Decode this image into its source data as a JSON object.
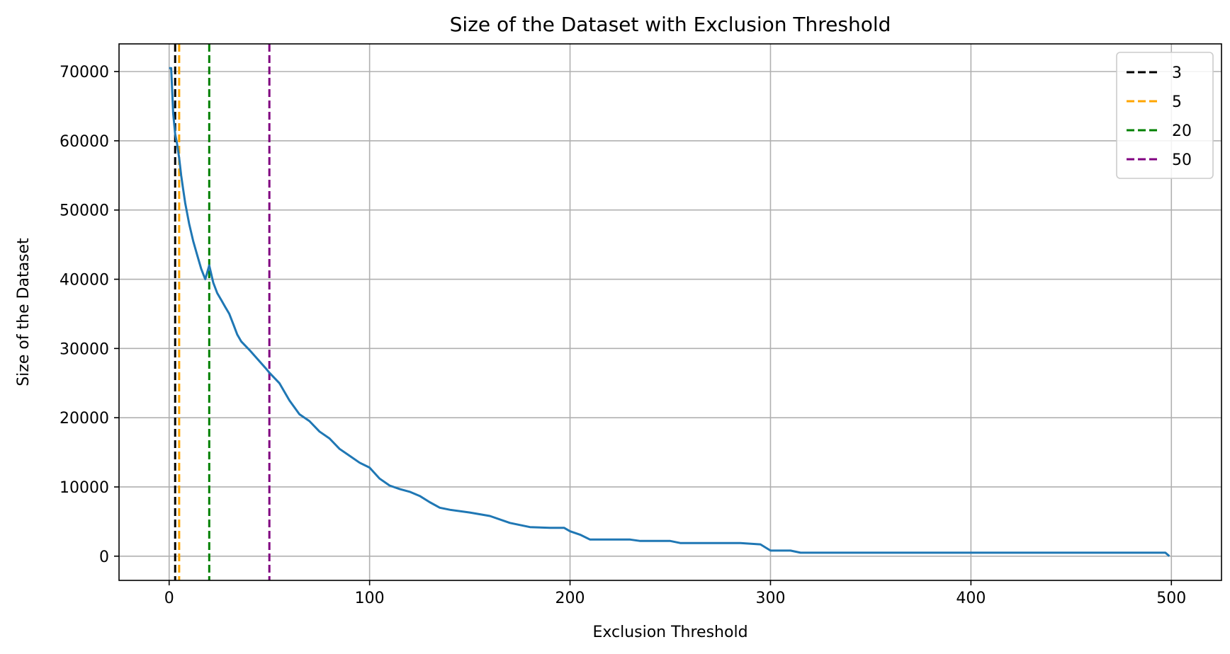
{
  "chart_data": {
    "type": "line",
    "title": "Size of the Dataset with Exclusion Threshold",
    "xlabel": "Exclusion Threshold",
    "ylabel": "Size of the Dataset",
    "xlim": [
      -25,
      525
    ],
    "ylim": [
      -3500,
      74000
    ],
    "xticks": [
      0,
      100,
      200,
      300,
      400,
      500
    ],
    "yticks": [
      0,
      10000,
      20000,
      30000,
      40000,
      50000,
      60000,
      70000
    ],
    "grid": true,
    "legend_position": "top-right",
    "series": [
      {
        "color": "#1f77b4",
        "x": [
          0,
          1,
          2,
          3,
          4,
          5,
          6,
          7,
          8,
          9,
          10,
          12,
          14,
          16,
          18,
          20,
          22,
          24,
          26,
          28,
          30,
          32,
          34,
          36,
          40,
          44,
          48,
          50,
          55,
          60,
          65,
          70,
          75,
          80,
          85,
          90,
          95,
          100,
          105,
          110,
          115,
          120,
          125,
          130,
          135,
          140,
          150,
          160,
          170,
          180,
          190,
          197,
          200,
          205,
          210,
          215,
          220,
          230,
          235,
          240,
          250,
          255,
          260,
          280,
          285,
          295,
          300,
          305,
          310,
          315,
          320,
          350,
          400,
          450,
          497,
          499
        ],
        "y": [
          70500,
          70500,
          64000,
          61000,
          59500,
          57500,
          55000,
          53000,
          51000,
          49500,
          48000,
          45500,
          43500,
          41500,
          40000,
          42000,
          39500,
          38000,
          37000,
          36000,
          35000,
          33500,
          32000,
          31000,
          29800,
          28500,
          27200,
          26500,
          25000,
          22500,
          20500,
          19500,
          18000,
          17000,
          15500,
          14500,
          13500,
          12800,
          11200,
          10200,
          9700,
          9300,
          8700,
          7800,
          7000,
          6700,
          6300,
          5800,
          4800,
          4200,
          4100,
          4100,
          3600,
          3100,
          2400,
          2400,
          2400,
          2400,
          2200,
          2200,
          2200,
          1900,
          1900,
          1900,
          1900,
          1700,
          800,
          800,
          800,
          500,
          500,
          500,
          500,
          500,
          500,
          0
        ]
      }
    ],
    "vlines": [
      {
        "x": 3,
        "label": "3",
        "color": "#000000"
      },
      {
        "x": 5,
        "label": "5",
        "color": "#ffa500"
      },
      {
        "x": 20,
        "label": "20",
        "color": "#008000"
      },
      {
        "x": 50,
        "label": "50",
        "color": "#800080"
      }
    ]
  }
}
